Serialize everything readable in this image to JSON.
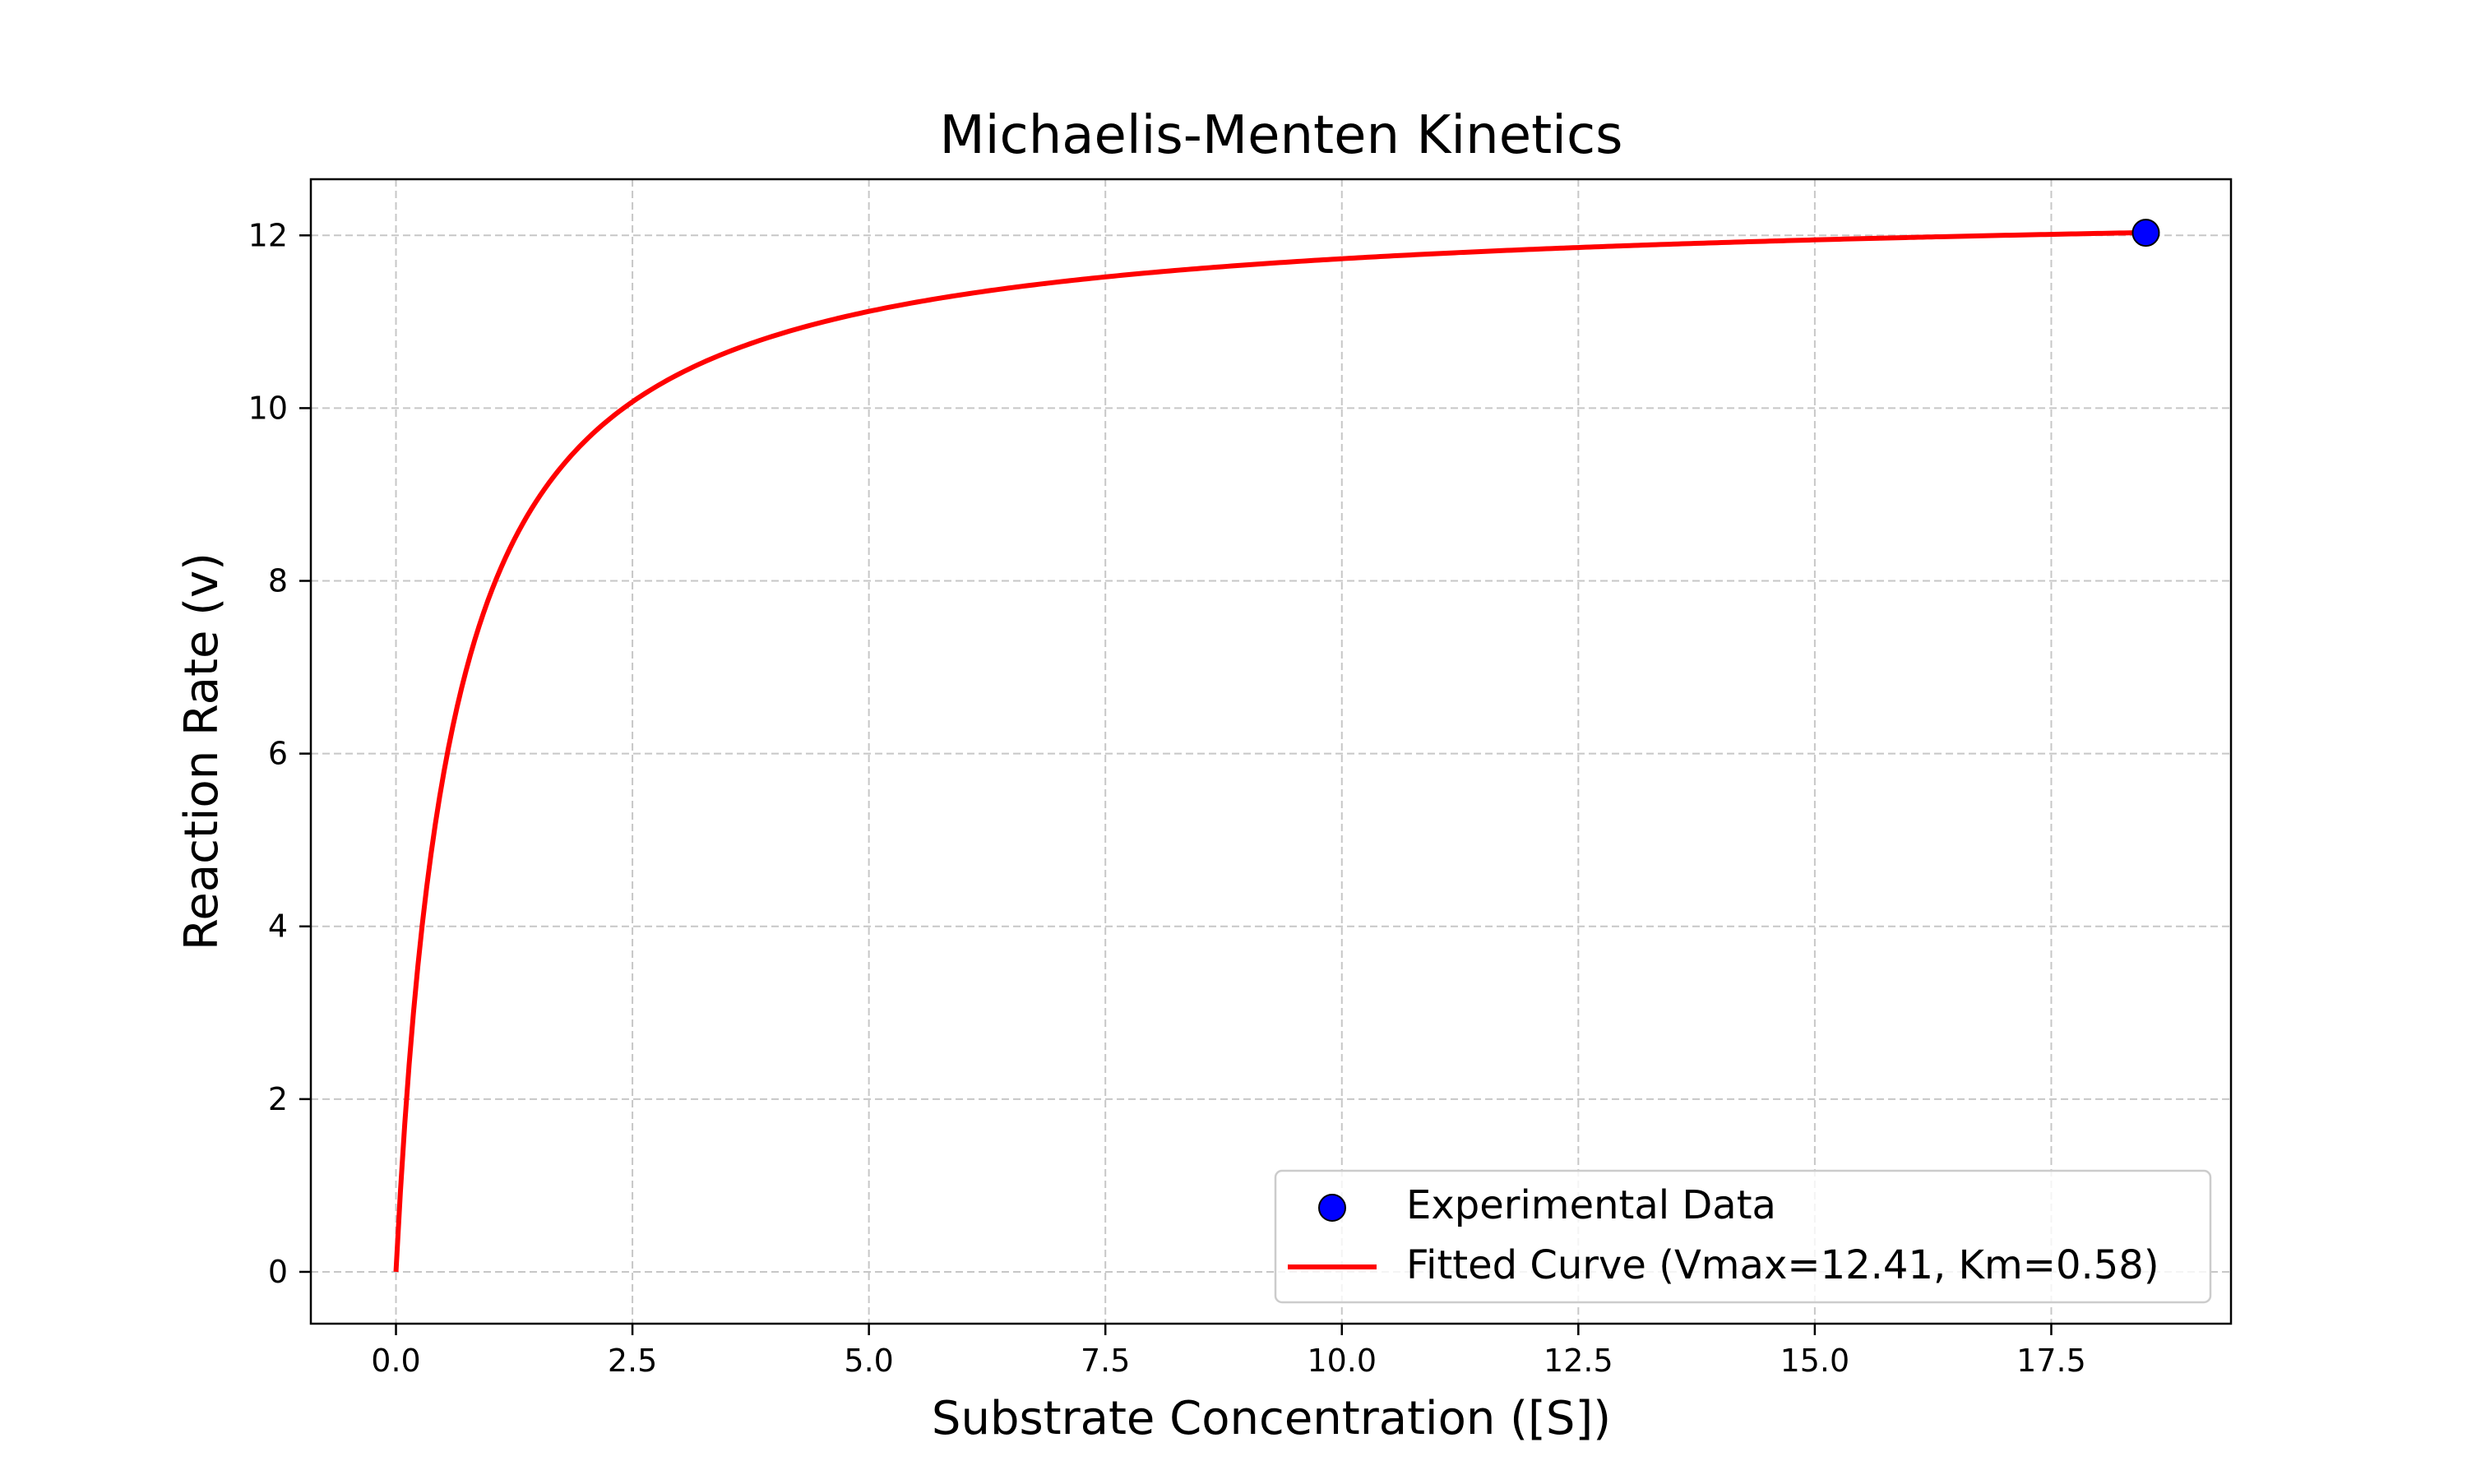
{
  "chart_data": {
    "type": "scatter",
    "title": "Michaelis-Menten Kinetics",
    "xlabel": "Substrate Concentration ([S])",
    "ylabel": "Reaction Rate (v)",
    "xlim": [
      -0.9,
      19.4
    ],
    "ylim": [
      -0.6,
      12.65
    ],
    "xticks": [
      0.0,
      2.5,
      5.0,
      7.5,
      10.0,
      12.5,
      15.0,
      17.5
    ],
    "xtick_labels": [
      "0.0",
      "2.5",
      "5.0",
      "7.5",
      "10.0",
      "12.5",
      "15.0",
      "17.5"
    ],
    "yticks": [
      0,
      2,
      4,
      6,
      8,
      10,
      12
    ],
    "ytick_labels": [
      "0",
      "2",
      "4",
      "6",
      "8",
      "10",
      "12"
    ],
    "grid": true,
    "legend_position": "lower-right",
    "colors": {
      "scatter_fill": "#0000ff",
      "fit_line": "#ff0000",
      "grid": "#b0b0b0"
    },
    "series": [
      {
        "name": "Experimental Data",
        "kind": "scatter",
        "points": [
          {
            "x": 18.5,
            "y": 12.03
          }
        ]
      },
      {
        "name": "Fitted Curve (Vmax=12.41, Km=0.58)",
        "kind": "line",
        "model": "michaelis-menten",
        "vmax": 12.41,
        "km": 0.58,
        "x_range": [
          0,
          18.5
        ]
      }
    ]
  }
}
